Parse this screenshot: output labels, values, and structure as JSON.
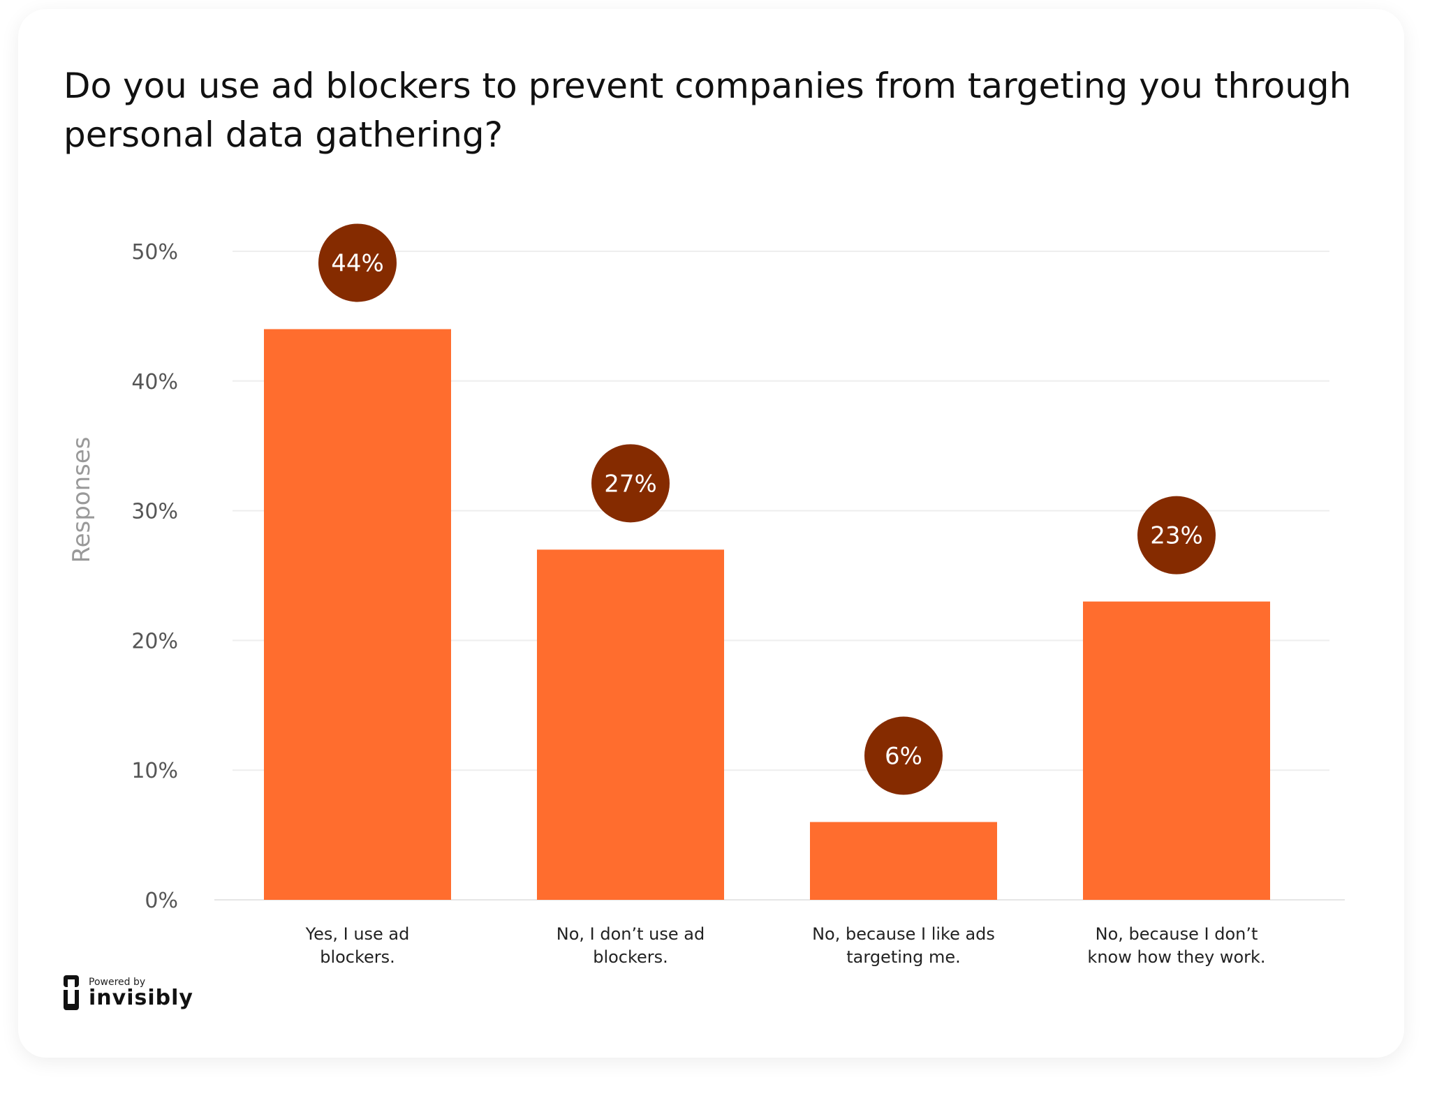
{
  "chart_data": {
    "type": "bar",
    "title": "Do you use ad blockers to prevent companies from targeting you through personal data gathering?",
    "xlabel": "",
    "ylabel": "Responses",
    "ylim": [
      0,
      50
    ],
    "yticks": [
      "0%",
      "10%",
      "20%",
      "30%",
      "40%",
      "50%"
    ],
    "ytick_values": [
      0,
      10,
      20,
      30,
      40,
      50
    ],
    "grid": true,
    "categories": [
      [
        "Yes, I use ad",
        "blockers."
      ],
      [
        "No, I don’t use ad",
        "blockers."
      ],
      [
        "No, because I like ads",
        "targeting me."
      ],
      [
        "No, because I don’t",
        "know how they work."
      ]
    ],
    "values": [
      44,
      27,
      6,
      23
    ],
    "data_labels": [
      "44%",
      "27%",
      "6%",
      "23%"
    ],
    "colors": {
      "bar": "#FF6D2E",
      "label_circle": "#852B00",
      "grid": "#EEEEEE"
    }
  },
  "footer": {
    "powered_by": "Powered by",
    "brand": "invisibly"
  }
}
